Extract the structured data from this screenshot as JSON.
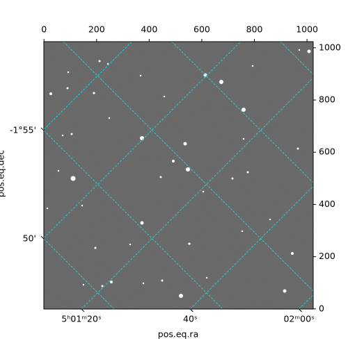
{
  "chart_data": {
    "type": "image",
    "xlabel": "pos.eq.ra",
    "ylabel": "pos.eq.dec",
    "xlim": [
      -0.5,
      1023.5
    ],
    "ylim": [
      -0.5,
      1023.5
    ],
    "xticks": [
      0,
      200,
      400,
      600,
      800,
      1000
    ],
    "yticks": [
      0,
      200,
      400,
      600,
      800,
      1000
    ],
    "ra_ticks": [
      {
        "value": 80,
        "label": "5ʰ01ᵐ20ˢ"
      },
      {
        "value": 100,
        "label": "40ˢ"
      },
      {
        "value": 120,
        "label": "02ᵐ00ˢ"
      }
    ],
    "ra_grid": [
      40,
      60,
      80,
      100,
      120
    ],
    "dec_ticks": [
      {
        "value": -115,
        "label": "-1°55'"
      },
      {
        "value": -110,
        "label": "50'"
      }
    ],
    "dec_grid": [
      -130,
      -125,
      -120,
      -115,
      -110
    ],
    "grid_color": "#00e5e5"
  }
}
